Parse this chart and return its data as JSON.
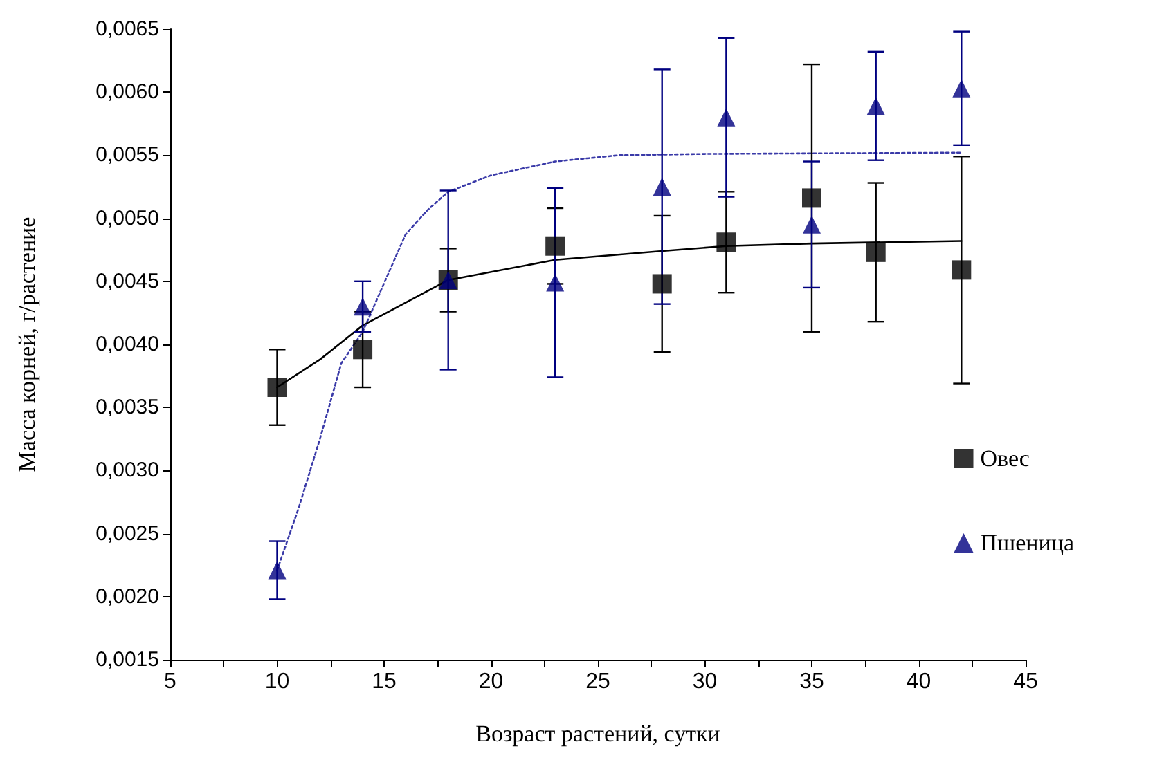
{
  "chart_data": {
    "type": "scatter",
    "xlabel": "Возраст растений, сутки",
    "ylabel": "Масса корней, г/растение",
    "xlim": [
      5,
      45
    ],
    "xticks": [
      5,
      {
        "value": 7.5,
        "label": null
      },
      10,
      {
        "value": 12.5,
        "label": null
      },
      15,
      {
        "value": 17.5,
        "label": null
      },
      20,
      {
        "value": 22.5,
        "label": null
      },
      25,
      {
        "value": 27.5,
        "label": null
      },
      30,
      {
        "value": 32.5,
        "label": null
      },
      35,
      {
        "value": 37.5,
        "label": null
      },
      40,
      {
        "value": 42.5,
        "label": null
      },
      45
    ],
    "ylim": [
      0.0015,
      0.0065
    ],
    "yticks": [
      {
        "value": 0.0015,
        "label": "0,0015"
      },
      {
        "value": 0.002,
        "label": "0,0020"
      },
      {
        "value": 0.0025,
        "label": "0,0025"
      },
      {
        "value": 0.003,
        "label": "0,0030"
      },
      {
        "value": 0.0035,
        "label": "0,0035"
      },
      {
        "value": 0.004,
        "label": "0,0040"
      },
      {
        "value": 0.0045,
        "label": "0,0045"
      },
      {
        "value": 0.005,
        "label": "0,0050"
      },
      {
        "value": 0.0055,
        "label": "0,0055"
      },
      {
        "value": 0.006,
        "label": "0,0060"
      },
      {
        "value": 0.0065,
        "label": "0,0065"
      }
    ],
    "grid": false,
    "legend": "right",
    "series": [
      {
        "name": "Овес",
        "marker": "square",
        "color": "#000000",
        "x": [
          10,
          14,
          18,
          23,
          28,
          31,
          35,
          38,
          42
        ],
        "values": [
          0.00366,
          0.00396,
          0.00451,
          0.00478,
          0.00448,
          0.00481,
          0.00516,
          0.00473,
          0.00459
        ],
        "errors": [
          0.0003,
          0.0003,
          0.00025,
          0.0003,
          0.00054,
          0.0004,
          0.00106,
          0.00055,
          0.0009
        ]
      },
      {
        "type": "line",
        "marker": "none",
        "line_style": "solid",
        "color": "#000000",
        "x": [
          10,
          12,
          14,
          18,
          23,
          28,
          31,
          35,
          42
        ],
        "values": [
          0.00366,
          0.00388,
          0.00415,
          0.00451,
          0.00467,
          0.00474,
          0.00478,
          0.0048,
          0.00482
        ]
      },
      {
        "name": "Пшеница",
        "marker": "triangle",
        "color": "#000080",
        "x": [
          10,
          14,
          18,
          23,
          28,
          31,
          35,
          38,
          42
        ],
        "values": [
          0.00221,
          0.0043,
          0.00451,
          0.00449,
          0.00525,
          0.0058,
          0.00495,
          0.00589,
          0.00603
        ],
        "errors": [
          0.00023,
          0.0002,
          0.00071,
          0.00075,
          0.00093,
          0.00063,
          0.0005,
          0.00043,
          0.00045
        ]
      },
      {
        "type": "line",
        "marker": "none",
        "line_style": "dotted",
        "color": "#3a3aa8",
        "x": [
          10,
          11,
          12,
          13,
          14,
          16,
          17,
          18,
          20,
          23,
          26,
          30,
          42
        ],
        "values": [
          0.00221,
          0.0027,
          0.00325,
          0.00385,
          0.0041,
          0.00487,
          0.00506,
          0.00521,
          0.00534,
          0.00545,
          0.0055,
          0.00551,
          0.00552
        ]
      }
    ]
  }
}
